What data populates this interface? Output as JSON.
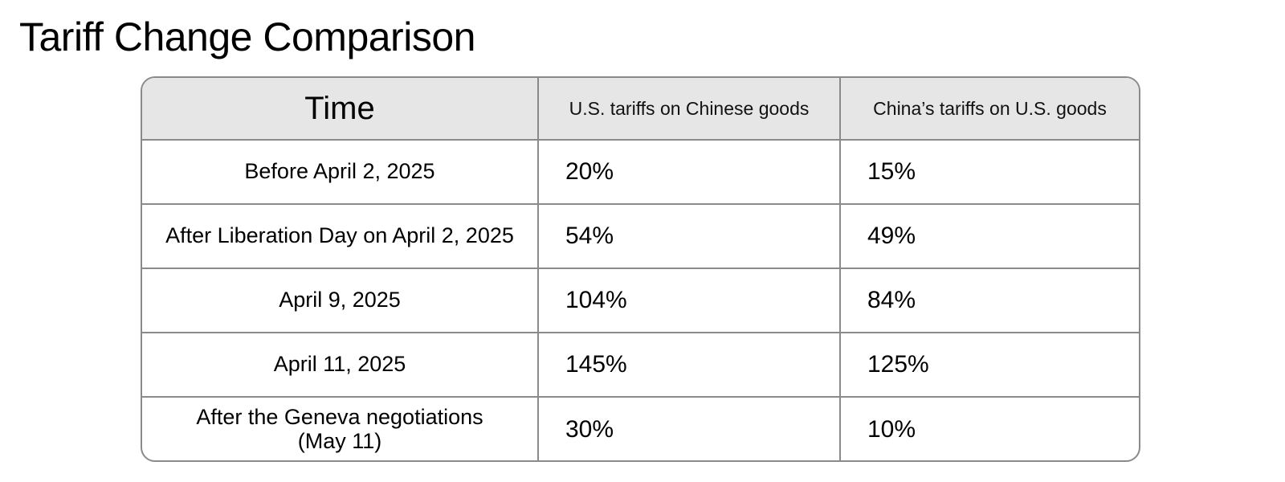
{
  "title": "Tariff Change Comparison",
  "table": {
    "headers": {
      "time": "Time",
      "us": "U.S. tariffs on Chinese goods",
      "china": "China’s tariffs on U.S. goods"
    },
    "rows": [
      {
        "time": "Before April 2, 2025",
        "time2": "",
        "us": "20%",
        "china": "15%"
      },
      {
        "time": "After Liberation Day on April 2, 2025",
        "time2": "",
        "us": "54%",
        "china": "49%"
      },
      {
        "time": "April 9, 2025",
        "time2": "",
        "us": "104%",
        "china": "84%"
      },
      {
        "time": "April 11, 2025",
        "time2": "",
        "us": "145%",
        "china": "125%"
      },
      {
        "time": "After the Geneva negotiations",
        "time2": "(May 11)",
        "us": "30%",
        "china": "10%"
      }
    ]
  }
}
